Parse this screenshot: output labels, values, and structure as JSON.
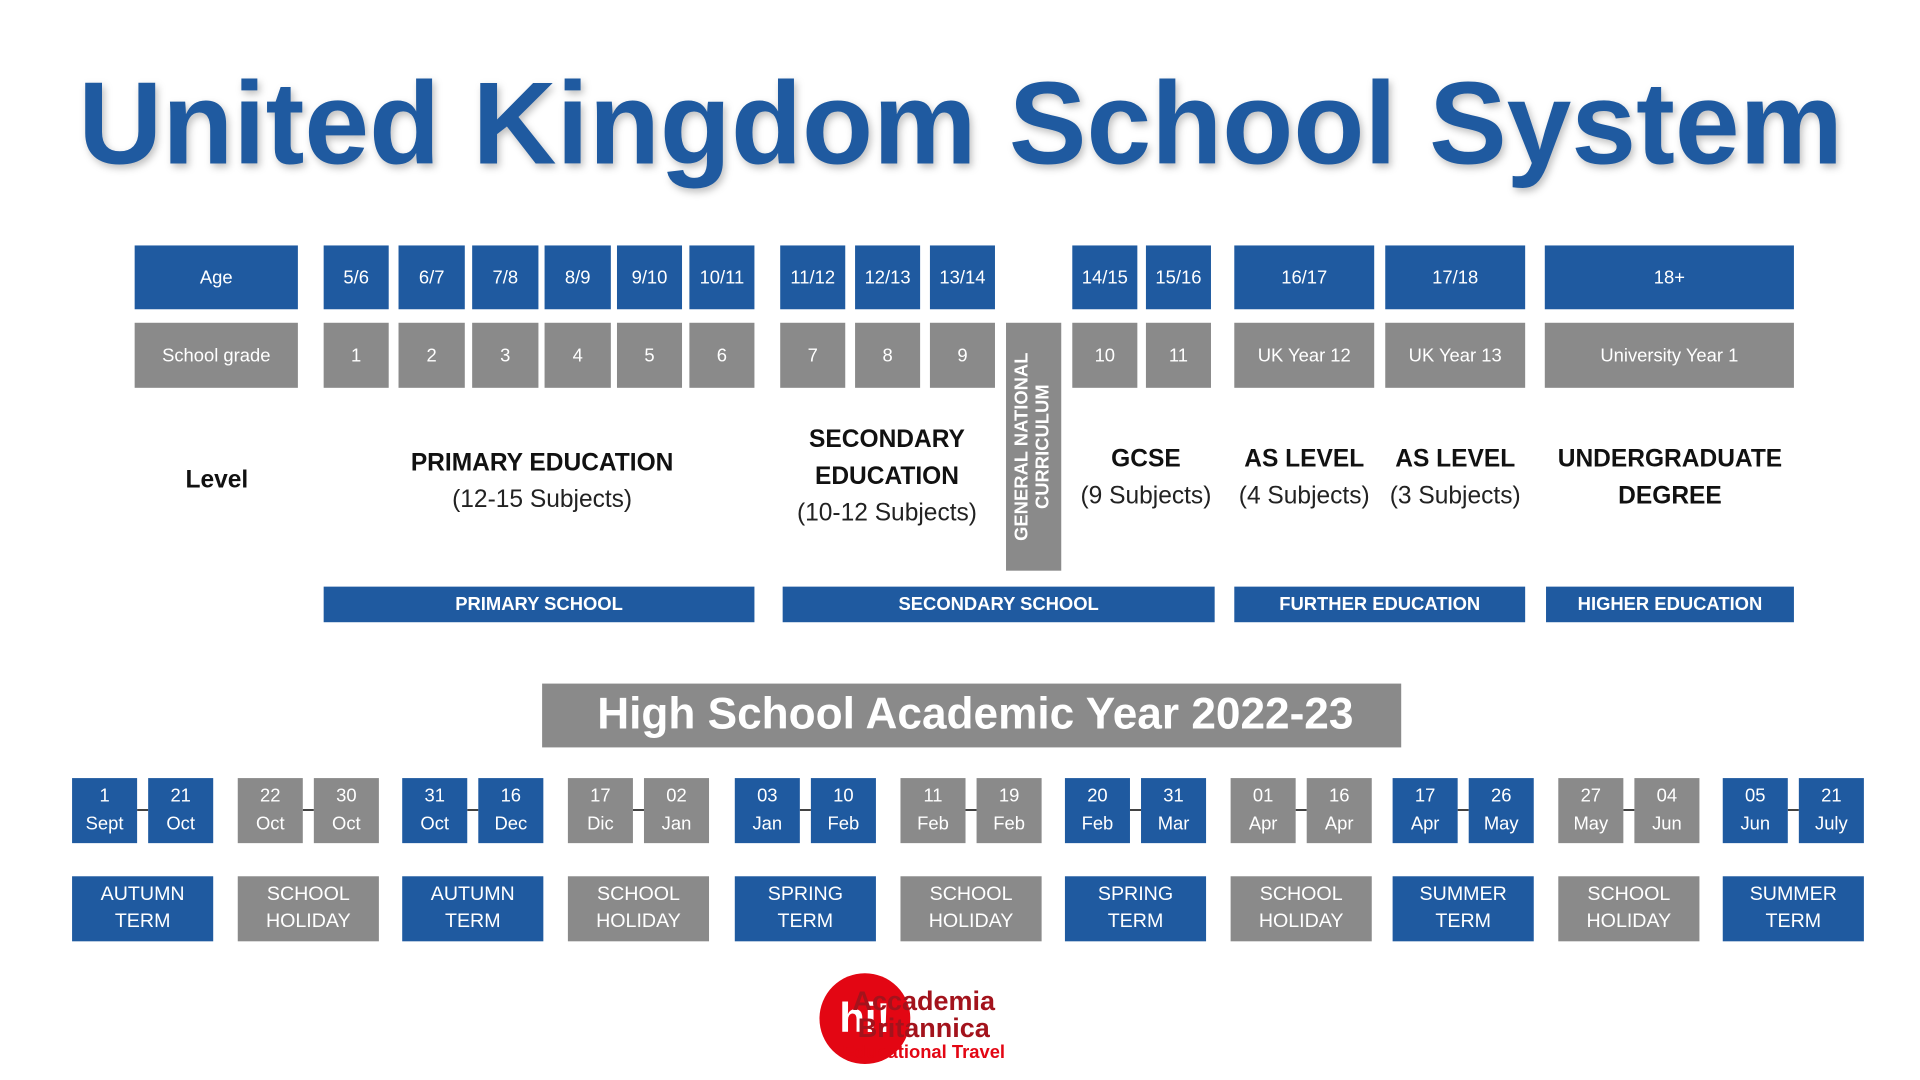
{
  "title": "United Kingdom School System",
  "rows": {
    "age_label": "Age",
    "grade_label": "School grade",
    "level_label": "Level"
  },
  "ages": [
    "5/6",
    "6/7",
    "7/8",
    "8/9",
    "9/10",
    "10/11",
    "11/12",
    "12/13",
    "13/14",
    "14/15",
    "15/16",
    "16/17",
    "17/18",
    "18+"
  ],
  "grades": [
    "1",
    "2",
    "3",
    "4",
    "5",
    "6",
    "7",
    "8",
    "9",
    "10",
    "11",
    "UK Year 12",
    "UK Year 13",
    "University Year 1"
  ],
  "curriculum": [
    "GENERAL NATIONAL",
    "CURRICULUM"
  ],
  "levels": [
    {
      "heading": [
        "PRIMARY EDUCATION"
      ],
      "note": "(12-15 Subjects)"
    },
    {
      "heading": [
        "SECONDARY",
        "EDUCATION"
      ],
      "note": "(10-12 Subjects)"
    },
    {
      "heading": [
        "GCSE"
      ],
      "note": "(9 Subjects)"
    },
    {
      "heading": [
        "AS LEVEL"
      ],
      "note": "(4 Subjects)"
    },
    {
      "heading": [
        "AS LEVEL"
      ],
      "note": "(3 Subjects)"
    },
    {
      "heading": [
        "UNDERGRADUATE",
        "DEGREE"
      ]
    }
  ],
  "schools": [
    "PRIMARY SCHOOL",
    "SECONDARY SCHOOL",
    "FURTHER EDUCATION",
    "HIGHER EDUCATION"
  ],
  "calendar_title": "High School Academic Year 2022-23",
  "terms": [
    {
      "start": [
        "1",
        "Sept"
      ],
      "end": [
        "21",
        "Oct"
      ],
      "label": [
        "AUTUMN",
        "TERM"
      ],
      "color": "#1f5aa0"
    },
    {
      "start": [
        "22",
        "Oct"
      ],
      "end": [
        "30",
        "Oct"
      ],
      "label": [
        "SCHOOL",
        "HOLIDAY"
      ],
      "color": "#8a8a8a"
    },
    {
      "start": [
        "31",
        "Oct"
      ],
      "end": [
        "16",
        "Dec"
      ],
      "label": [
        "AUTUMN",
        "TERM"
      ],
      "color": "#1f5aa0"
    },
    {
      "start": [
        "17",
        "Dic"
      ],
      "end": [
        "02",
        "Jan"
      ],
      "label": [
        "SCHOOL",
        "HOLIDAY"
      ],
      "color": "#8a8a8a"
    },
    {
      "start": [
        "03",
        "Jan"
      ],
      "end": [
        "10",
        "Feb"
      ],
      "label": [
        "SPRING",
        "TERM"
      ],
      "color": "#1f5aa0"
    },
    {
      "start": [
        "11",
        "Feb"
      ],
      "end": [
        "19",
        "Feb"
      ],
      "label": [
        "SCHOOL",
        "HOLIDAY"
      ],
      "color": "#8a8a8a"
    },
    {
      "start": [
        "20",
        "Feb"
      ],
      "end": [
        "31",
        "Mar"
      ],
      "label": [
        "SPRING",
        "TERM"
      ],
      "color": "#1f5aa0"
    },
    {
      "start": [
        "01",
        "Apr"
      ],
      "end": [
        "16",
        "Apr"
      ],
      "label": [
        "SCHOOL",
        "HOLIDAY"
      ],
      "color": "#8a8a8a"
    },
    {
      "start": [
        "17",
        "Apr"
      ],
      "end": [
        "26",
        "May"
      ],
      "label": [
        "SUMMER",
        "TERM"
      ],
      "color": "#1f5aa0"
    },
    {
      "start": [
        "27",
        "May"
      ],
      "end": [
        "04",
        "Jun"
      ],
      "label": [
        "SCHOOL",
        "HOLIDAY"
      ],
      "color": "#8a8a8a"
    },
    {
      "start": [
        "05",
        "Jun"
      ],
      "end": [
        "21",
        "July"
      ],
      "label": [
        "SUMMER",
        "TERM"
      ],
      "color": "#1f5aa0"
    }
  ],
  "logo": {
    "mark": "hi!",
    "name_1": "Accademia",
    "name_2": "Britannica",
    "tagline": "Educational Travel"
  }
}
